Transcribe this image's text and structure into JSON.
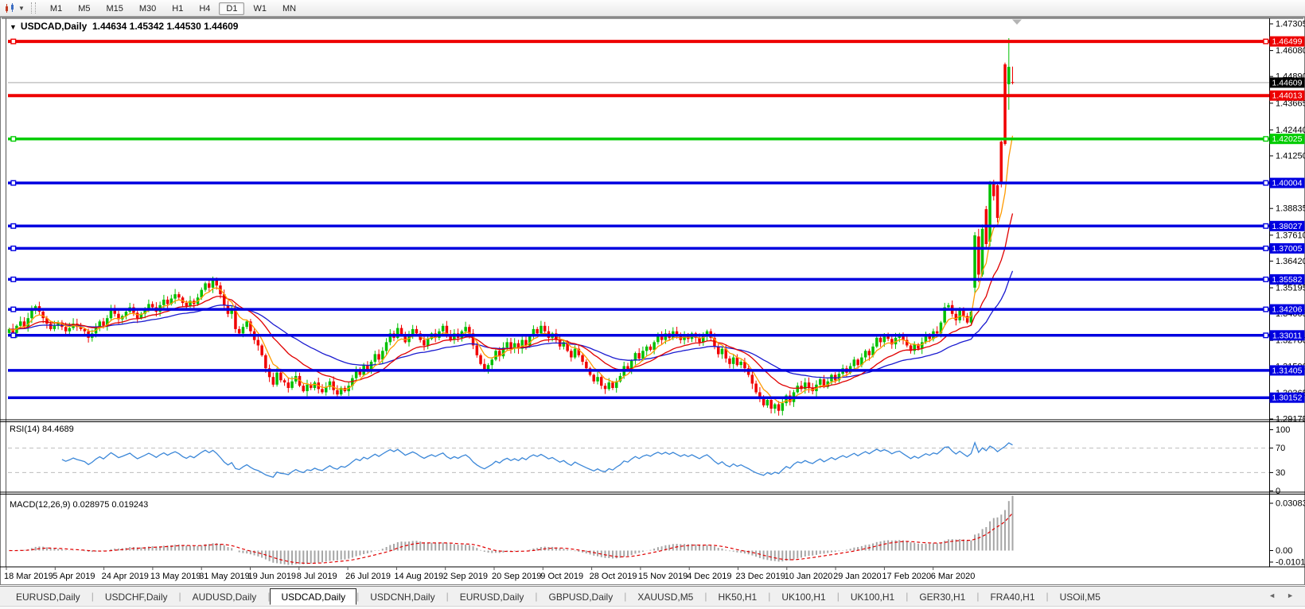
{
  "window": {
    "title_symbol": "USDCAD,Daily",
    "title_quotes": "1.44634 1.45342 1.44530 1.44609"
  },
  "toolbar": {
    "timeframes": [
      "M1",
      "M5",
      "M15",
      "M30",
      "H1",
      "H4",
      "D1",
      "W1",
      "MN"
    ],
    "active": "D1"
  },
  "indicators": {
    "rsi": {
      "label": "RSI(14) 84.4689",
      "value": 84.4689,
      "period": 14,
      "levels": [
        "100",
        "70",
        "30",
        "0"
      ],
      "level_values": [
        100,
        70,
        30,
        0
      ],
      "color": "#3b87d8"
    },
    "macd": {
      "label": "MACD(12,26,9) 0.028975 0.019243",
      "value": 0.028975,
      "signal": 0.019243,
      "ticks": [
        "0.030838",
        "0.00",
        "-0.010144"
      ],
      "hist_color": "#a6a6a6",
      "signal_color": "#e00000"
    }
  },
  "tabs": {
    "items": [
      "EURUSD,Daily",
      "USDCHF,Daily",
      "AUDUSD,Daily",
      "USDCAD,Daily",
      "USDCNH,Daily",
      "EURUSD,Daily",
      "GBPUSD,Daily",
      "XAUUSD,M5",
      "HK50,H1",
      "UK100,H1",
      "UK100,H1",
      "GER30,H1",
      "FRA40,H1",
      "USOil,M5"
    ],
    "active_index": 3,
    "left_arrow": "◄",
    "right_arrow": "►"
  },
  "chart_data": {
    "type": "candlestick",
    "symbol": "USDCAD",
    "timeframe": "Daily",
    "current_price": 1.44609,
    "current_label": "1.44609",
    "y_axis": {
      "max": 1.47305,
      "min": 1.29175
    },
    "price_ticks": [
      "1.47305",
      "1.46080",
      "1.44890",
      "1.43665",
      "1.42440",
      "1.41250",
      "1.38835",
      "1.37610",
      "1.36420",
      "1.35195",
      "1.34005",
      "1.32780",
      "1.31590",
      "1.30365",
      "1.29175"
    ],
    "x_axis": {
      "labels": [
        "18 Mar 2019",
        "5 Apr 2019",
        "24 Apr 2019",
        "13 May 2019",
        "31 May 2019",
        "19 Jun 2019",
        "8 Jul 2019",
        "26 Jul 2019",
        "14 Aug 2019",
        "2 Sep 2019",
        "20 Sep 2019",
        "9 Oct 2019",
        "28 Oct 2019",
        "15 Nov 2019",
        "4 Dec 2019",
        "23 Dec 2019",
        "10 Jan 2020",
        "29 Jan 2020",
        "17 Feb 2020",
        "6 Mar 2020"
      ]
    },
    "hlines": [
      {
        "price": 1.46499,
        "label": "1.46499",
        "color": "#ee0000",
        "handles": true
      },
      {
        "price": 1.44013,
        "label": "1.44013",
        "color": "#ee0000",
        "handles": false
      },
      {
        "price": 1.42025,
        "label": "1.42025",
        "color": "#00cc00",
        "handles": true
      },
      {
        "price": 1.40004,
        "label": "1.40004",
        "color": "#0000e0",
        "handles": true
      },
      {
        "price": 1.38027,
        "label": "1.38027",
        "color": "#0000e0",
        "handles": true
      },
      {
        "price": 1.37005,
        "label": "1.37005",
        "color": "#0000e0",
        "handles": true
      },
      {
        "price": 1.35582,
        "label": "1.35582",
        "color": "#0000e0",
        "handles": true
      },
      {
        "price": 1.34206,
        "label": "1.34206",
        "color": "#0000e0",
        "handles": true
      },
      {
        "price": 1.33011,
        "label": "1.33011",
        "color": "#0000e0",
        "handles": true
      },
      {
        "price": 1.31405,
        "label": "1.31405",
        "color": "#0000e0",
        "handles": false
      },
      {
        "price": 1.30152,
        "label": "1.30152",
        "color": "#0000e0",
        "handles": false
      }
    ],
    "up_color": "#00c000",
    "down_color": "#f00000",
    "current_line_color": "#c4c4c4",
    "ma_series": [
      {
        "name": "ma-fast",
        "period": 6,
        "color": "#ff9a00"
      },
      {
        "name": "ma-medium",
        "period": 18,
        "color": "#e00000"
      },
      {
        "name": "ma-slow",
        "period": 40,
        "color": "#1a1ad0"
      }
    ],
    "closes": [
      1.333,
      1.3312,
      1.3345,
      1.3365,
      1.334,
      1.338,
      1.342,
      1.3435,
      1.341,
      1.338,
      1.3355,
      1.333,
      1.3345,
      1.336,
      1.334,
      1.332,
      1.3335,
      1.3355,
      1.334,
      1.333,
      1.332,
      1.329,
      1.331,
      1.334,
      1.3365,
      1.3345,
      1.338,
      1.342,
      1.34,
      1.3375,
      1.339,
      1.341,
      1.343,
      1.3405,
      1.338,
      1.34,
      1.342,
      1.3445,
      1.343,
      1.341,
      1.344,
      1.3465,
      1.3445,
      1.347,
      1.349,
      1.3475,
      1.345,
      1.3435,
      1.346,
      1.3445,
      1.3475,
      1.351,
      1.354,
      1.352,
      1.3555,
      1.353,
      1.349,
      1.344,
      1.34,
      1.3425,
      1.333,
      1.331,
      1.334,
      1.3365,
      1.332,
      1.328,
      1.3255,
      1.321,
      1.315,
      1.311,
      1.3075,
      1.313,
      1.3095,
      1.3085,
      1.306,
      1.309,
      1.3115,
      1.307,
      1.3045,
      1.3075,
      1.306,
      1.3085,
      1.3055,
      1.304,
      1.3065,
      1.309,
      1.305,
      1.303,
      1.306,
      1.3045,
      1.307,
      1.3105,
      1.314,
      1.312,
      1.3165,
      1.3145,
      1.318,
      1.3215,
      1.319,
      1.323,
      1.327,
      1.331,
      1.329,
      1.3335,
      1.3305,
      1.327,
      1.33,
      1.333,
      1.331,
      1.328,
      1.3255,
      1.3285,
      1.331,
      1.329,
      1.332,
      1.3345,
      1.3305,
      1.328,
      1.331,
      1.329,
      1.332,
      1.334,
      1.331,
      1.3255,
      1.321,
      1.317,
      1.314,
      1.3165,
      1.319,
      1.323,
      1.3205,
      1.3245,
      1.327,
      1.324,
      1.3265,
      1.324,
      1.328,
      1.3255,
      1.33,
      1.333,
      1.331,
      1.3345,
      1.332,
      1.329,
      1.331,
      1.328,
      1.325,
      1.327,
      1.323,
      1.32,
      1.324,
      1.321,
      1.318,
      1.315,
      1.312,
      1.309,
      1.311,
      1.307,
      1.3055,
      1.3085,
      1.306,
      1.309,
      1.3115,
      1.316,
      1.3145,
      1.3185,
      1.322,
      1.3195,
      1.323,
      1.325,
      1.3235,
      1.327,
      1.33,
      1.328,
      1.331,
      1.329,
      1.332,
      1.33,
      1.328,
      1.3305,
      1.3285,
      1.331,
      1.329,
      1.327,
      1.33,
      1.332,
      1.329,
      1.325,
      1.3215,
      1.324,
      1.3195,
      1.317,
      1.32,
      1.3165,
      1.318,
      1.315,
      1.312,
      1.308,
      1.304,
      1.301,
      1.298,
      1.3005,
      1.2965,
      1.2985,
      1.2955,
      1.299,
      1.3025,
      1.2995,
      1.304,
      1.307,
      1.3055,
      1.3085,
      1.306,
      1.3045,
      1.3075,
      1.31,
      1.3065,
      1.309,
      1.312,
      1.3095,
      1.3125,
      1.315,
      1.313,
      1.316,
      1.319,
      1.3165,
      1.32,
      1.323,
      1.321,
      1.325,
      1.329,
      1.327,
      1.33,
      1.3285,
      1.326,
      1.329,
      1.3305,
      1.328,
      1.3255,
      1.323,
      1.326,
      1.324,
      1.327,
      1.33,
      1.3285,
      1.332,
      1.331,
      1.336,
      1.343,
      1.344,
      1.34,
      1.337,
      1.342,
      1.339,
      1.336,
      1.341
    ],
    "spike_ohlc": [
      [
        1.352,
        1.3775,
        1.349,
        1.376
      ],
      [
        1.3755,
        1.379,
        1.3545,
        1.358
      ],
      [
        1.358,
        1.381,
        1.357,
        1.379
      ],
      [
        1.388,
        1.3895,
        1.37,
        1.372
      ],
      [
        1.373,
        1.401,
        1.371,
        1.3995
      ],
      [
        1.3995,
        1.4015,
        1.392,
        1.394
      ],
      [
        1.399,
        1.4,
        1.382,
        1.384
      ],
      [
        1.419,
        1.4195,
        1.398,
        1.4005
      ],
      [
        1.4545,
        1.4553,
        1.4172,
        1.418
      ],
      [
        1.4453,
        1.4665,
        1.4336,
        1.4533
      ],
      [
        1.44634,
        1.45342,
        1.4453,
        1.44609
      ]
    ]
  }
}
